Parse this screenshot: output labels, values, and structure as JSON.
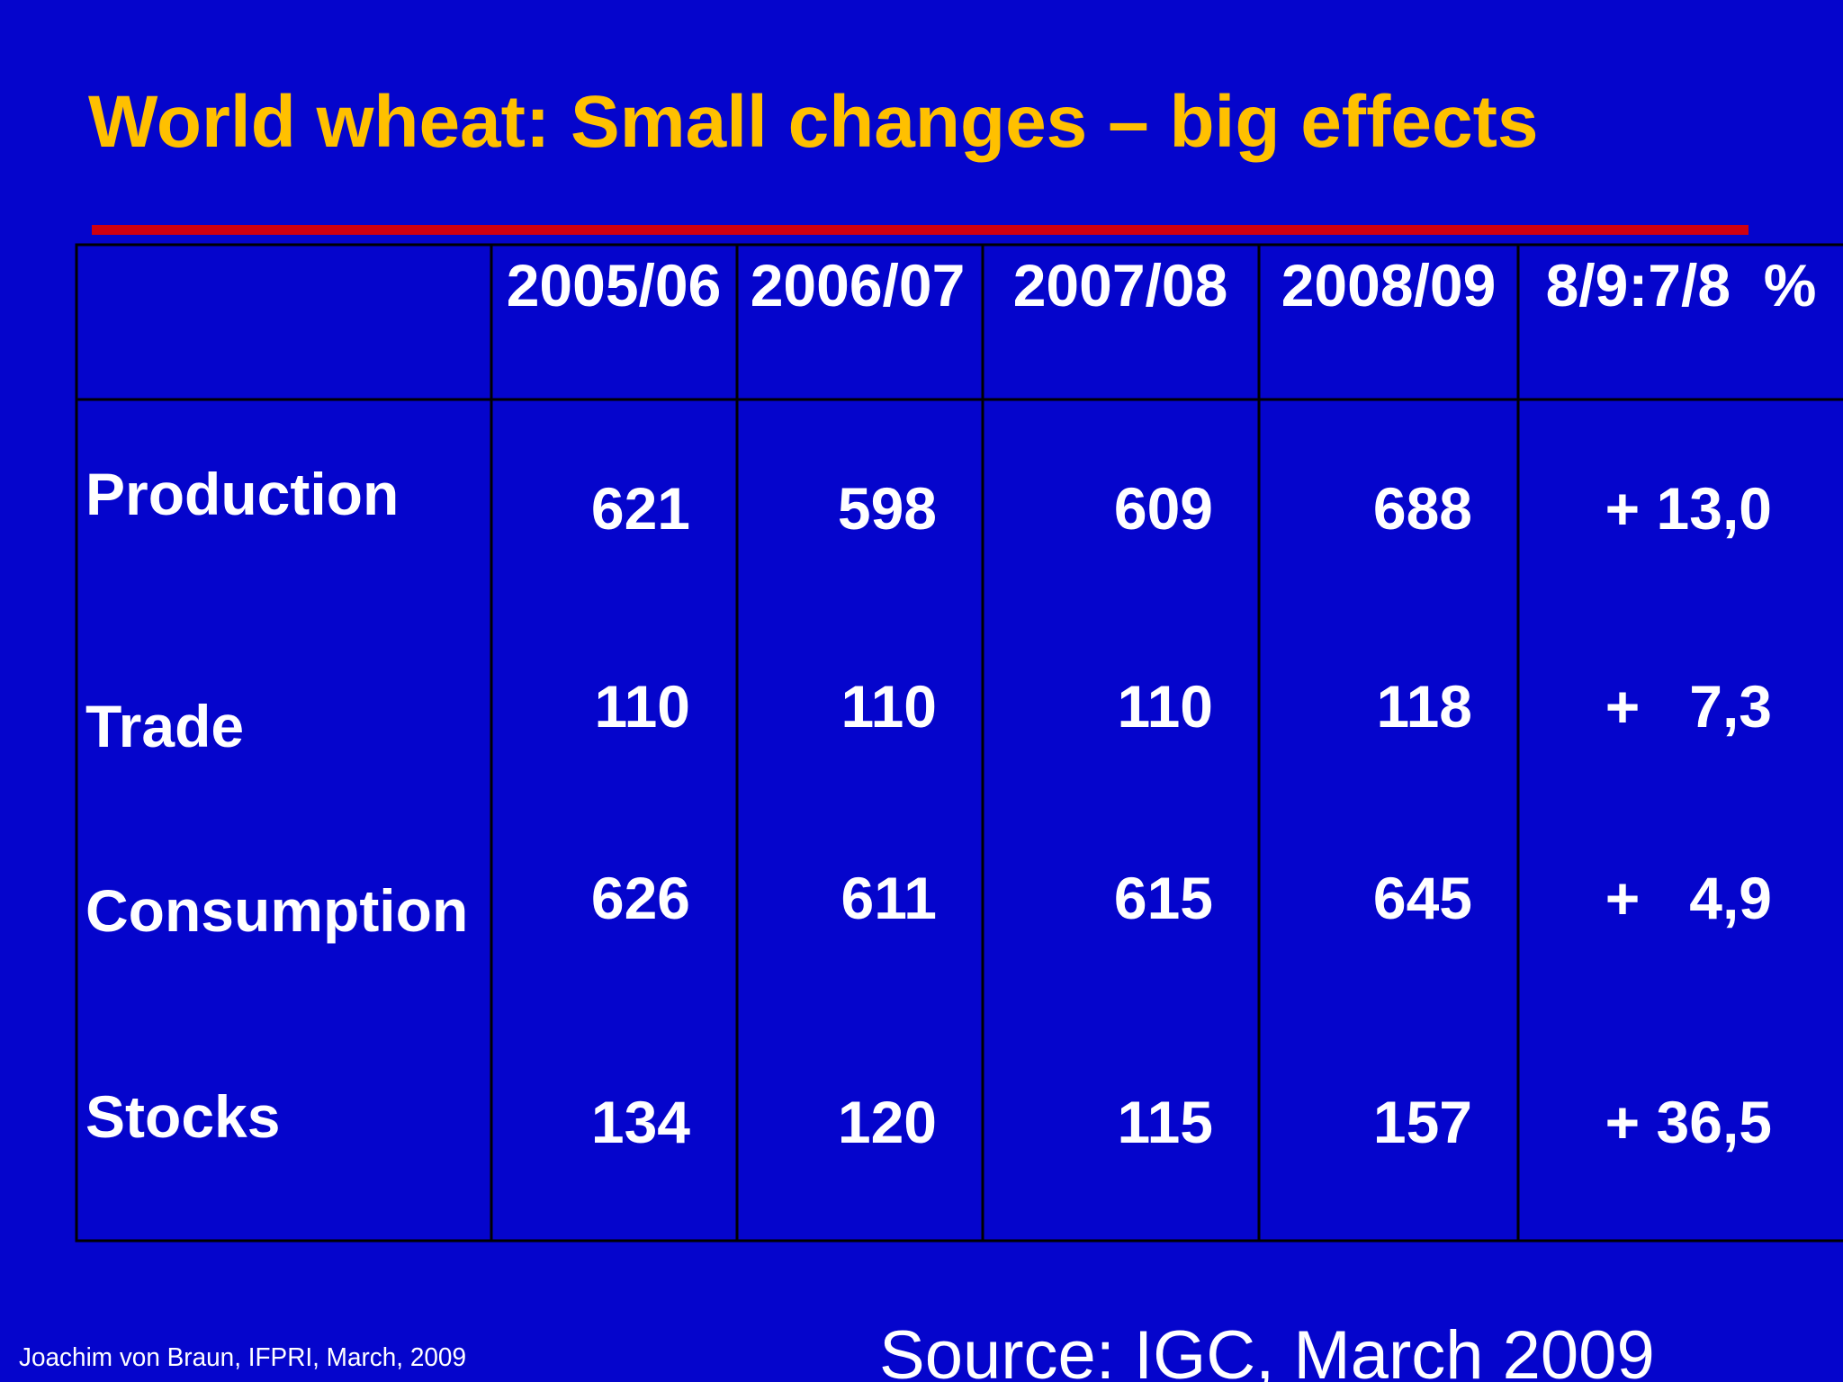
{
  "header": {
    "title": "World wheat: Small changes – big effects"
  },
  "table": {
    "columns": [
      "2005/06",
      "2006/07",
      "2007/08",
      "2008/09",
      "8/9:7/8  %"
    ],
    "rows": [
      {
        "label": "Production",
        "values": [
          "621",
          "598",
          "609",
          "688",
          "+ 13,0"
        ]
      },
      {
        "label": "Trade",
        "values": [
          "110",
          "110",
          "110",
          "118",
          "+   7,3"
        ]
      },
      {
        "label": "Consumption",
        "values": [
          "626",
          "611",
          "615",
          "645",
          "+   4,9"
        ]
      },
      {
        "label": "Stocks",
        "values": [
          "134",
          "120",
          "115",
          "157",
          "+ 36,5"
        ]
      }
    ]
  },
  "footer": {
    "author": "Joachim von Braun, IFPRI, March, 2009",
    "source": "Source: IGC, March 2009"
  }
}
